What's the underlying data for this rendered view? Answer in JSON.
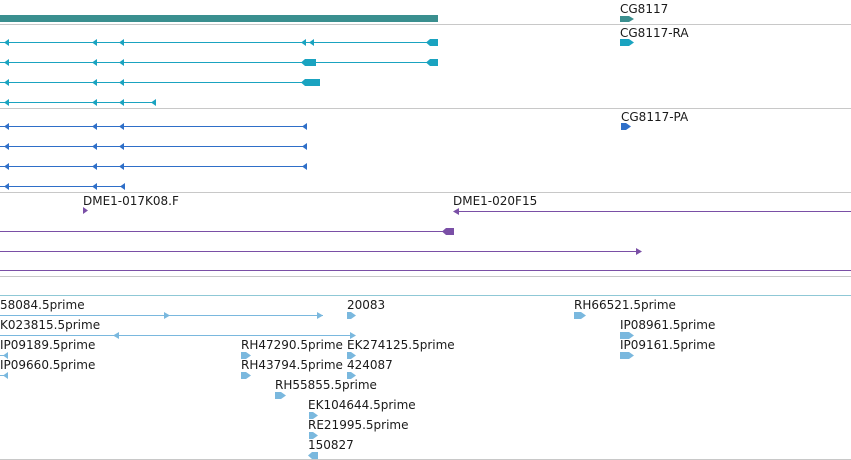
{
  "colors": {
    "gene": "#3a8f8f",
    "transcript_ra": "#1aa3c0",
    "transcript_pa": "#2f6fc8",
    "clone": "#7a4fa6",
    "est": "#7ab8de",
    "divider": "#c8c8c8",
    "est_divider": "#8fc8d6"
  },
  "tracks": {
    "gene": {
      "label": "CG8117"
    },
    "transcript": {
      "label": "CG8117-RA"
    },
    "protein": {
      "label": "CG8117-PA"
    },
    "clones": {
      "labels": [
        "DME1-017K08.F",
        "DME1-020F15"
      ]
    },
    "ests": {
      "labels": [
        "58084.5prime",
        "20083",
        "RH66521.5prime",
        "K023815.5prime",
        "IP08961.5prime",
        "IP09189.5prime",
        "RH47290.5prime",
        "EK274125.5prime",
        "IP09161.5prime",
        "IP09660.5prime",
        "RH43794.5prime",
        "424087",
        "RH55855.5prime",
        "EK104644.5prime",
        "RE21995.5prime",
        "150827"
      ]
    }
  }
}
